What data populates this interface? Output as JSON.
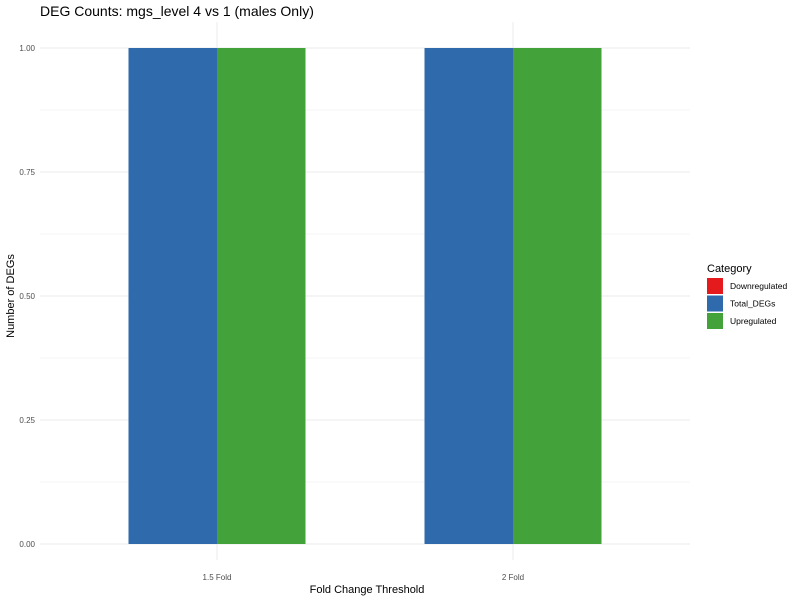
{
  "chart_data": {
    "type": "bar",
    "title": "DEG Counts: mgs_level 4 vs 1 (males Only)",
    "xlabel": "Fold Change Threshold",
    "ylabel": "Number of DEGs",
    "categories": [
      "1.5 Fold",
      "2 Fold"
    ],
    "series": [
      {
        "name": "Downregulated",
        "color": "#e41a1c",
        "values": [
          0,
          0
        ]
      },
      {
        "name": "Total_DEGs",
        "color": "#2e6aac",
        "values": [
          1,
          1
        ]
      },
      {
        "name": "Upregulated",
        "color": "#43a23a",
        "values": [
          1,
          1
        ]
      }
    ],
    "ylim": [
      0,
      1
    ],
    "yticks": [
      0,
      0.25,
      0.5,
      0.75,
      1
    ],
    "ytick_labels": [
      "0.00",
      "0.25",
      "0.50",
      "0.75",
      "1.00"
    ],
    "legend": {
      "title": "Category",
      "position": "right"
    },
    "grid": true
  }
}
